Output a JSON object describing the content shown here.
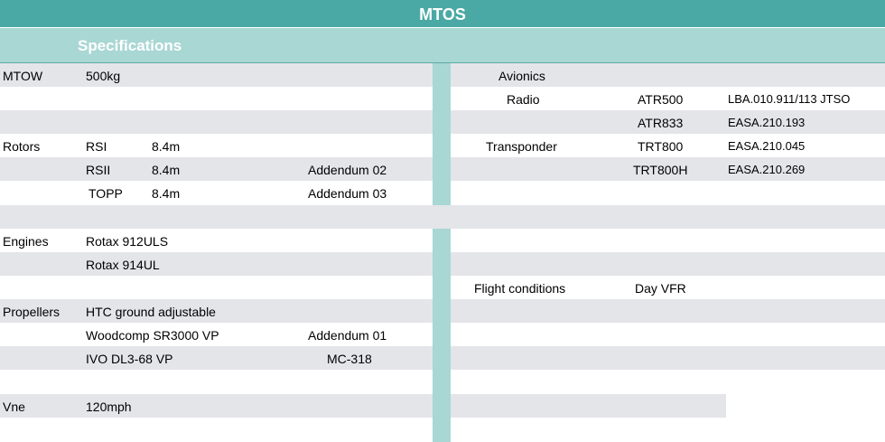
{
  "title": "MTOS",
  "section": "Specifications",
  "left": {
    "mtow": {
      "label": "MTOW",
      "value": "500kg"
    },
    "rotors": {
      "label": "Rotors",
      "items": [
        {
          "name": "RSI",
          "size": "8.4m",
          "note": ""
        },
        {
          "name": "RSII",
          "size": "8.4m",
          "note": "Addendum 02"
        },
        {
          "name": "TOPP",
          "size": "8.4m",
          "note": "Addendum 03"
        }
      ]
    },
    "engines": {
      "label": "Engines",
      "items": [
        "Rotax 912ULS",
        "Rotax 914UL"
      ]
    },
    "propellers": {
      "label": "Propellers",
      "items": [
        {
          "name": "HTC ground adjustable",
          "note": ""
        },
        {
          "name": "Woodcomp SR3000 VP",
          "note": "Addendum 01"
        },
        {
          "name": "IVO DL3-68 VP",
          "note": "MC-318"
        }
      ]
    },
    "vne": {
      "label": "Vne",
      "value": "120mph"
    }
  },
  "right": {
    "avionics": {
      "label": "Avionics"
    },
    "radio": {
      "label": "Radio",
      "items": [
        {
          "model": "ATR500",
          "cert": "LBA.010.911/113 JTSO"
        },
        {
          "model": "ATR833",
          "cert": "EASA.210.193"
        }
      ]
    },
    "transponder": {
      "label": "Transponder",
      "items": [
        {
          "model": "TRT800",
          "cert": "EASA.210.045"
        },
        {
          "model": "TRT800H",
          "cert": "EASA.210.269"
        }
      ]
    },
    "flight_conditions": {
      "label": "Flight conditions",
      "value": "Day VFR"
    }
  }
}
